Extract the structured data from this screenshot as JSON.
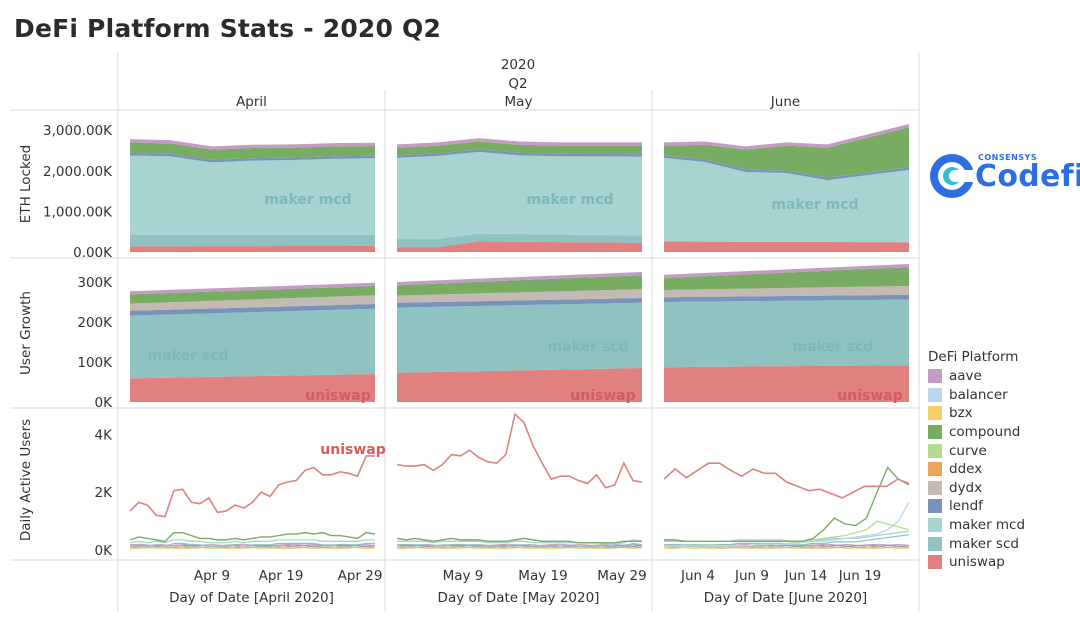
{
  "title": "DeFi Platform Stats - 2020 Q2",
  "header": {
    "year": "2020",
    "quarter": "Q2"
  },
  "months": [
    "April",
    "May",
    "June"
  ],
  "x_axis_titles": [
    "Day of Date [April 2020]",
    "Day of Date [May 2020]",
    "Day of Date [June 2020]"
  ],
  "logo": {
    "small": "CONSENSYS",
    "big": "Codefi"
  },
  "legend": {
    "title": "DeFi Platform",
    "items": [
      {
        "label": "aave",
        "color": "#c49bc4"
      },
      {
        "label": "balancer",
        "color": "#bcd6ec"
      },
      {
        "label": "bzx",
        "color": "#f2d06b"
      },
      {
        "label": "compound",
        "color": "#79ac63"
      },
      {
        "label": "curve",
        "color": "#b5dc8d"
      },
      {
        "label": "ddex",
        "color": "#eba559"
      },
      {
        "label": "dydx",
        "color": "#c2bab3"
      },
      {
        "label": "lendf",
        "color": "#7793bb"
      },
      {
        "label": "maker mcd",
        "color": "#a7d3d0"
      },
      {
        "label": "maker scd",
        "color": "#8fc3c1"
      },
      {
        "label": "uniswap",
        "color": "#e0807f"
      }
    ]
  },
  "chart_data": {
    "type": "area",
    "panels": [
      {
        "row": "ETH Locked",
        "ylabel": "ETH Locked",
        "yticks": [
          "0.00K",
          "1,000.00K",
          "2,000.00K",
          "3,000.00K"
        ],
        "ylim": [
          0,
          3200000
        ],
        "x_ticks": [
          [
            "Apr 9",
            "Apr 19",
            "Apr 29"
          ],
          [
            "May 9",
            "May 19",
            "May 29"
          ],
          [
            "Jun 4",
            "Jun 9",
            "Jun 14",
            "Jun 19"
          ]
        ],
        "labels": [
          {
            "text": "maker mcd",
            "series": "maker mcd",
            "months": [
              "April",
              "May",
              "June"
            ]
          }
        ],
        "series_approx_totals": {
          "April": [
            2780000,
            2750000,
            2600000,
            2640000,
            2650000,
            2680000,
            2690000
          ],
          "May": [
            2650000,
            2700000,
            2800000,
            2720000,
            2700000,
            2700000,
            2700000
          ],
          "June": [
            2700000,
            2720000,
            2600000,
            2700000,
            2650000,
            2900000,
            3150000
          ]
        },
        "bands": {
          "uniswap": {
            "April": [
              140000,
              150000
            ],
            "May": [
              120000,
              260000,
              230000
            ],
            "June": [
              260000,
              240000
            ]
          },
          "maker scd": {
            "April": [
              280000,
              270000
            ],
            "May": [
              200000,
              180000
            ],
            "June": [
              0,
              0
            ]
          },
          "maker mcd": {
            "April": [
              1950000,
              1900000
            ],
            "May": [
              1950000,
              1950000
            ],
            "June": [
              2000000,
              1800000
            ]
          },
          "compound": {
            "April": [
              320000,
              300000
            ],
            "May": [
              250000,
              270000
            ],
            "June": [
              300000,
              1050000
            ]
          }
        }
      },
      {
        "row": "User Growth",
        "ylabel": "User Growth",
        "yticks": [
          "0K",
          "100K",
          "200K",
          "300K"
        ],
        "ylim": [
          0,
          330000
        ],
        "labels": [
          {
            "text": "maker scd",
            "series": "maker scd",
            "months": [
              "April",
              "May",
              "June"
            ]
          },
          {
            "text": "uniswap",
            "series": "uniswap",
            "months": [
              "April",
              "May",
              "June"
            ]
          }
        ],
        "totals": {
          "April": [
            277000,
            298000
          ],
          "May": [
            300000,
            325000
          ],
          "June": [
            318000,
            345000
          ]
        },
        "uniswap": {
          "April": [
            59000,
            70000
          ],
          "May": [
            73000,
            85000
          ],
          "June": [
            87000,
            92000
          ]
        },
        "maker scd_top": {
          "April": [
            228000,
            245000
          ],
          "May": [
            248000,
            260000
          ],
          "June": [
            262000,
            268000
          ]
        }
      },
      {
        "row": "Daily Active Users",
        "ylabel": "Daily Active Users",
        "yticks": [
          "0K",
          "2K",
          "4K"
        ],
        "ylim": [
          0,
          4700
        ],
        "labels": [
          {
            "text": "uniswap",
            "series": "uniswap",
            "months": [
              "April"
            ]
          }
        ],
        "uniswap": {
          "April": [
            1350,
            1650,
            1550,
            1200,
            1150,
            2050,
            2100,
            1650,
            1600,
            1800,
            1300,
            1350,
            1550,
            1450,
            1650,
            2000,
            1850,
            2250,
            2350,
            2400,
            2750,
            2850,
            2600,
            2600,
            2700,
            2650,
            2550,
            3250,
            3250
          ],
          "May": [
            2950,
            2900,
            2900,
            2950,
            2750,
            2950,
            3300,
            3250,
            3450,
            3200,
            3050,
            3000,
            3300,
            4700,
            4400,
            3600,
            3000,
            2450,
            2550,
            2550,
            2400,
            2300,
            2600,
            2150,
            2250,
            3000,
            2400,
            2350
          ],
          "June": [
            2450,
            2800,
            2500,
            2750,
            3000,
            3000,
            2750,
            2550,
            2800,
            2650,
            2650,
            2350,
            2200,
            2050,
            2100,
            1950,
            1800,
            2000,
            2200,
            2200,
            2200,
            2450,
            2300
          ]
        },
        "compound": {
          "April": [
            350,
            450,
            400,
            350,
            300,
            600,
            600,
            500,
            400,
            400,
            350,
            350,
            400,
            350,
            400,
            450,
            450,
            500,
            550,
            550,
            600,
            550,
            600,
            500,
            500,
            450,
            400,
            600,
            550
          ],
          "May": [
            400,
            350,
            400,
            350,
            300,
            350,
            400,
            350,
            350,
            350,
            300,
            300,
            300,
            350,
            400,
            350,
            300,
            300,
            300,
            300,
            250,
            250,
            250,
            250,
            250,
            300,
            300,
            300
          ],
          "June": [
            350,
            350,
            300,
            300,
            300,
            300,
            300,
            300,
            300,
            300,
            300,
            300,
            300,
            300,
            400,
            700,
            1100,
            900,
            850,
            1100,
            2000,
            2850,
            2450,
            2250
          ]
        },
        "curve": {
          "June": [
            150,
            150,
            150,
            150,
            150,
            150,
            150,
            150,
            150,
            200,
            200,
            200,
            250,
            300,
            350,
            400,
            450,
            500,
            600,
            700,
            1000,
            900,
            800,
            700
          ]
        },
        "balancer": {
          "June": [
            100,
            100,
            100,
            100,
            100,
            150,
            150,
            150,
            150,
            200,
            200,
            200,
            200,
            250,
            300,
            300,
            350,
            400,
            450,
            500,
            550,
            700,
            1000,
            1650
          ]
        },
        "maker": {
          "April": [
            250,
            300,
            250,
            300,
            250,
            350,
            350,
            300,
            300,
            250,
            250,
            250,
            300,
            250,
            300,
            300,
            300,
            350,
            350,
            350,
            350,
            350,
            300,
            300,
            300,
            300,
            300,
            350,
            350
          ],
          "May": [
            300,
            300,
            300,
            300,
            250,
            300,
            300,
            300,
            300,
            300,
            250,
            250,
            250,
            300,
            300,
            250,
            250,
            250,
            250,
            250,
            250,
            250,
            250,
            200,
            200,
            250,
            350,
            300
          ],
          "June": [
            300,
            300,
            300,
            300,
            300,
            300,
            300,
            350,
            350,
            350,
            350,
            350,
            300,
            300,
            350,
            350,
            400,
            400,
            400,
            450,
            500,
            550,
            600,
            650
          ]
        }
      }
    ]
  }
}
